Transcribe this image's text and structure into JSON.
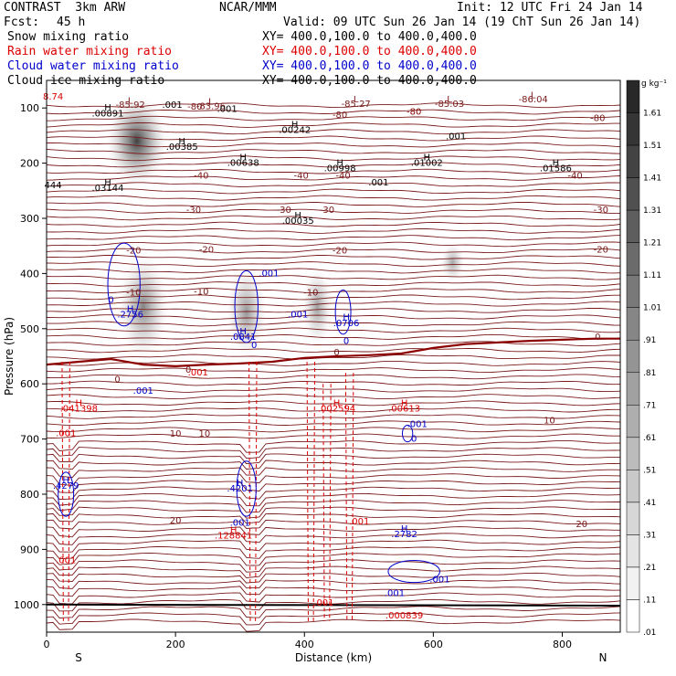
{
  "header": {
    "title_left": "CONTRAST  3km ARW",
    "title_center": "NCAR/MMM",
    "init": "Init: 12 UTC Fri 24 Jan 14",
    "fcst_label": "Fcst:",
    "fcst_value": "45 h",
    "valid": "Valid: 09 UTC Sun 26 Jan 14 (19 ChT Sun 26 Jan 14)",
    "fields": [
      {
        "name": "Snow mixing ratio",
        "xy": "XY= 400.0,100.0 to 400.0,400.0",
        "color": "#000000"
      },
      {
        "name": "Rain water mixing ratio",
        "xy": "XY= 400.0,100.0 to 400.0,400.0",
        "color": "#dd0000"
      },
      {
        "name": "Cloud water mixing ratio",
        "xy": "XY= 400.0,100.0 to 400.0,400.0",
        "color": "#0000cc"
      },
      {
        "name": "Cloud ice mixing ratio",
        "xy": "XY= 400.0,100.0 to 400.0,400.0",
        "color": "#000000"
      }
    ]
  },
  "chart_data": {
    "type": "contour",
    "xlabel": "Distance (km)",
    "ylabel": "Pressure (hPa)",
    "xlim": [
      0,
      890
    ],
    "ylim": [
      1050,
      50
    ],
    "x_ticks": [
      0,
      200,
      400,
      600,
      800
    ],
    "y_ticks": [
      100,
      200,
      300,
      400,
      500,
      600,
      700,
      800,
      900,
      1000
    ],
    "x_end_labels": {
      "left": "S",
      "right": "N"
    },
    "colorbar": {
      "units": "g kg⁻¹",
      "levels": [
        "1.61",
        "1.51",
        "1.41",
        "1.31",
        "1.21",
        "1.11",
        "1.01",
        ".91",
        ".81",
        ".71",
        ".61",
        ".51",
        ".41",
        ".31",
        ".21",
        ".11",
        ".01"
      ]
    },
    "temperature_isotherms": [
      {
        "value": "-80",
        "x": 230,
        "p": 103
      },
      {
        "value": "-80",
        "x": 455,
        "p": 118
      },
      {
        "value": "-80",
        "x": 855,
        "p": 124
      },
      {
        "value": "-40",
        "x": 240,
        "p": 228
      },
      {
        "value": "-40",
        "x": 460,
        "p": 228
      },
      {
        "value": "-40",
        "x": 820,
        "p": 228
      },
      {
        "value": "-40",
        "x": 395,
        "p": 228
      },
      {
        "value": "-30",
        "x": 228,
        "p": 290
      },
      {
        "value": "-30",
        "x": 435,
        "p": 290
      },
      {
        "value": "-30",
        "x": 860,
        "p": 290
      },
      {
        "value": "-30",
        "x": 368,
        "p": 290
      },
      {
        "value": "-20",
        "x": 135,
        "p": 364
      },
      {
        "value": "-20",
        "x": 248,
        "p": 362
      },
      {
        "value": "-20",
        "x": 455,
        "p": 364
      },
      {
        "value": "-20",
        "x": 860,
        "p": 362
      },
      {
        "value": "-10",
        "x": 240,
        "p": 438
      },
      {
        "value": "-10",
        "x": 410,
        "p": 440
      },
      {
        "value": "-10",
        "x": 135,
        "p": 440
      },
      {
        "value": "0",
        "x": 855,
        "p": 520
      },
      {
        "value": "0",
        "x": 450,
        "p": 548
      },
      {
        "value": "0",
        "x": 220,
        "p": 580
      },
      {
        "value": "0",
        "x": 110,
        "p": 597
      },
      {
        "value": "10",
        "x": 780,
        "p": 672
      },
      {
        "value": "10",
        "x": 245,
        "p": 696
      },
      {
        "value": "10",
        "x": 200,
        "p": 696
      },
      {
        "value": "20",
        "x": 200,
        "p": 853
      },
      {
        "value": "20",
        "x": 830,
        "p": 860
      }
    ],
    "freezing_level": [
      [
        0,
        565
      ],
      [
        50,
        560
      ],
      [
        100,
        555
      ],
      [
        150,
        565
      ],
      [
        200,
        568
      ],
      [
        250,
        565
      ],
      [
        300,
        563
      ],
      [
        350,
        560
      ],
      [
        400,
        553
      ],
      [
        450,
        550
      ],
      [
        500,
        548
      ],
      [
        550,
        545
      ],
      [
        600,
        535
      ],
      [
        650,
        528
      ],
      [
        700,
        525
      ],
      [
        750,
        522
      ],
      [
        800,
        520
      ],
      [
        850,
        518
      ],
      [
        890,
        518
      ]
    ],
    "temp_highs": [
      {
        "label": "H",
        "value": ".00891",
        "x": 95,
        "p": 115
      },
      {
        "label": "H",
        "value": ".00385",
        "x": 210,
        "p": 176
      },
      {
        "label": "H",
        "value": ".00242",
        "x": 385,
        "p": 145
      },
      {
        "label": "H",
        "value": ".00638",
        "x": 305,
        "p": 205
      },
      {
        "label": "H",
        "value": ".00998",
        "x": 455,
        "p": 215
      },
      {
        "label": "H",
        "value": ".01002",
        "x": 590,
        "p": 205
      },
      {
        "label": "H",
        "value": ".01586",
        "x": 790,
        "p": 215
      },
      {
        "label": "H",
        "value": ".03144",
        "x": 95,
        "p": 250
      },
      {
        "label": "H",
        "value": ".00035",
        "x": 390,
        "p": 310
      }
    ],
    "temp_lows": [
      {
        "label": "L",
        "value": "-85.92",
        "x": 130,
        "p": 100
      },
      {
        "label": "L",
        "value": "-83.96",
        "x": 255,
        "p": 102
      },
      {
        "label": "L",
        "value": "-85.27",
        "x": 480,
        "p": 98
      },
      {
        "label": "L",
        "value": "-85.03",
        "x": 625,
        "p": 98
      },
      {
        "label": "L",
        "value": "-86.04",
        "x": 755,
        "p": 90
      }
    ],
    "plot_labels": [
      {
        "text": "8.74",
        "x": 10,
        "p": 85,
        "color": "#dd0000"
      },
      {
        "text": ".001",
        "x": 195,
        "p": 100,
        "color": "#000000"
      },
      {
        "text": ".001",
        "x": 280,
        "p": 107,
        "color": "#000000"
      },
      {
        "text": ".001",
        "x": 635,
        "p": 157,
        "color": "#000000"
      },
      {
        "text": "444",
        "x": 10,
        "p": 245,
        "color": "#000000"
      },
      {
        "text": ".001",
        "x": 515,
        "p": 240,
        "color": "#000000"
      },
      {
        "text": "-80",
        "x": 570,
        "p": 112,
        "color": "#880000"
      }
    ],
    "cloud_water_labels": [
      {
        "label": "H",
        "value": ".2756",
        "x": 130,
        "p": 480
      },
      {
        "label": "H",
        "value": ".0841",
        "x": 305,
        "p": 520
      },
      {
        "label": "H",
        "value": ".0706",
        "x": 465,
        "p": 495
      },
      {
        "label": "H",
        "value": ".4279",
        "x": 30,
        "p": 790
      },
      {
        "label": "H",
        "value": ".4201",
        "x": 300,
        "p": 795
      },
      {
        "label": "H",
        "value": ".2782",
        "x": 555,
        "p": 878
      },
      {
        "label": "",
        "value": ".001",
        "x": 345,
        "p": 405
      },
      {
        "label": "",
        "value": ".001",
        "x": 390,
        "p": 480
      },
      {
        "label": "",
        "value": ".001",
        "x": 150,
        "p": 618
      },
      {
        "label": "",
        "value": ".001",
        "x": 575,
        "p": 678
      },
      {
        "label": "",
        "value": "0",
        "x": 570,
        "p": 705
      },
      {
        "label": "",
        "value": "0",
        "x": 100,
        "p": 453
      },
      {
        "label": "",
        "value": "0",
        "x": 465,
        "p": 528
      },
      {
        "label": "",
        "value": "0",
        "x": 322,
        "p": 535
      },
      {
        "label": "",
        "value": ".001",
        "x": 300,
        "p": 857
      },
      {
        "label": "",
        "value": ".001",
        "x": 610,
        "p": 960
      },
      {
        "label": "",
        "value": ".001",
        "x": 540,
        "p": 985
      }
    ],
    "rain_water_labels": [
      {
        "label": "H",
        "value": ".041398",
        "x": 50,
        "p": 650
      },
      {
        "label": "H",
        "value": ".002594",
        "x": 450,
        "p": 650
      },
      {
        "label": "H",
        "value": ".00613",
        "x": 555,
        "p": 650
      },
      {
        "label": "H",
        "value": ".128841",
        "x": 290,
        "p": 880
      },
      {
        "label": "",
        "value": ".001",
        "x": 30,
        "p": 695
      },
      {
        "label": "",
        "value": ".001",
        "x": 235,
        "p": 585
      },
      {
        "label": "",
        "value": ".001",
        "x": 485,
        "p": 855
      },
      {
        "label": "",
        "value": ".001",
        "x": 30,
        "p": 925
      },
      {
        "label": "",
        "value": ".001",
        "x": 430,
        "p": 1002
      },
      {
        "label": "",
        "value": ".000839",
        "x": 555,
        "p": 1025
      }
    ],
    "shading_blobs": [
      {
        "x": 140,
        "p": 160,
        "rx": 30,
        "rp": 70,
        "level": 1.4
      },
      {
        "x": 150,
        "p": 460,
        "rx": 25,
        "rp": 80,
        "level": 0.6
      },
      {
        "x": 310,
        "p": 470,
        "rx": 20,
        "rp": 70,
        "level": 0.4
      },
      {
        "x": 420,
        "p": 460,
        "rx": 15,
        "rp": 60,
        "level": 0.3
      },
      {
        "x": 630,
        "p": 380,
        "rx": 12,
        "rp": 30,
        "level": 0.2
      }
    ],
    "rain_shafts": [
      {
        "x": 30,
        "p_top": 560,
        "p_bot": 1030
      },
      {
        "x": 320,
        "p_top": 560,
        "p_bot": 1030
      },
      {
        "x": 410,
        "p_top": 560,
        "p_bot": 1030
      },
      {
        "x": 435,
        "p_top": 600,
        "p_bot": 1030
      },
      {
        "x": 470,
        "p_top": 580,
        "p_bot": 1030
      }
    ]
  }
}
